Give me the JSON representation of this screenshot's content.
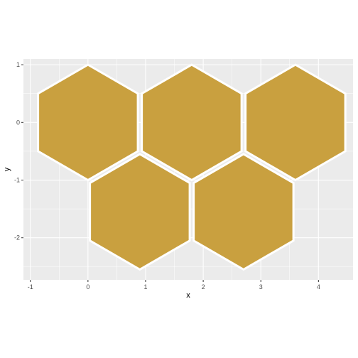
{
  "chart_data": {
    "type": "scatter",
    "geom": "hexagon",
    "xlabel": "x",
    "ylabel": "y",
    "xlim": [
      -1.12,
      4.6
    ],
    "ylim": [
      -2.73,
      1.1
    ],
    "x_ticks": [
      -1,
      0,
      1,
      2,
      3,
      4
    ],
    "y_ticks": [
      -2,
      -1,
      0,
      1
    ],
    "grid": true,
    "legend": "none",
    "hexagon_radius": 1,
    "fill_color": "#c9a03f",
    "outline_color": "#ffffff",
    "panel_color": "#ebebeb",
    "grid_color": "#ffffff",
    "points": [
      {
        "x": 0.0,
        "y": 0.0
      },
      {
        "x": 1.8,
        "y": 0.0
      },
      {
        "x": 3.6,
        "y": 0.0
      },
      {
        "x": 0.9,
        "y": -1.55
      },
      {
        "x": 2.7,
        "y": -1.55
      }
    ]
  }
}
